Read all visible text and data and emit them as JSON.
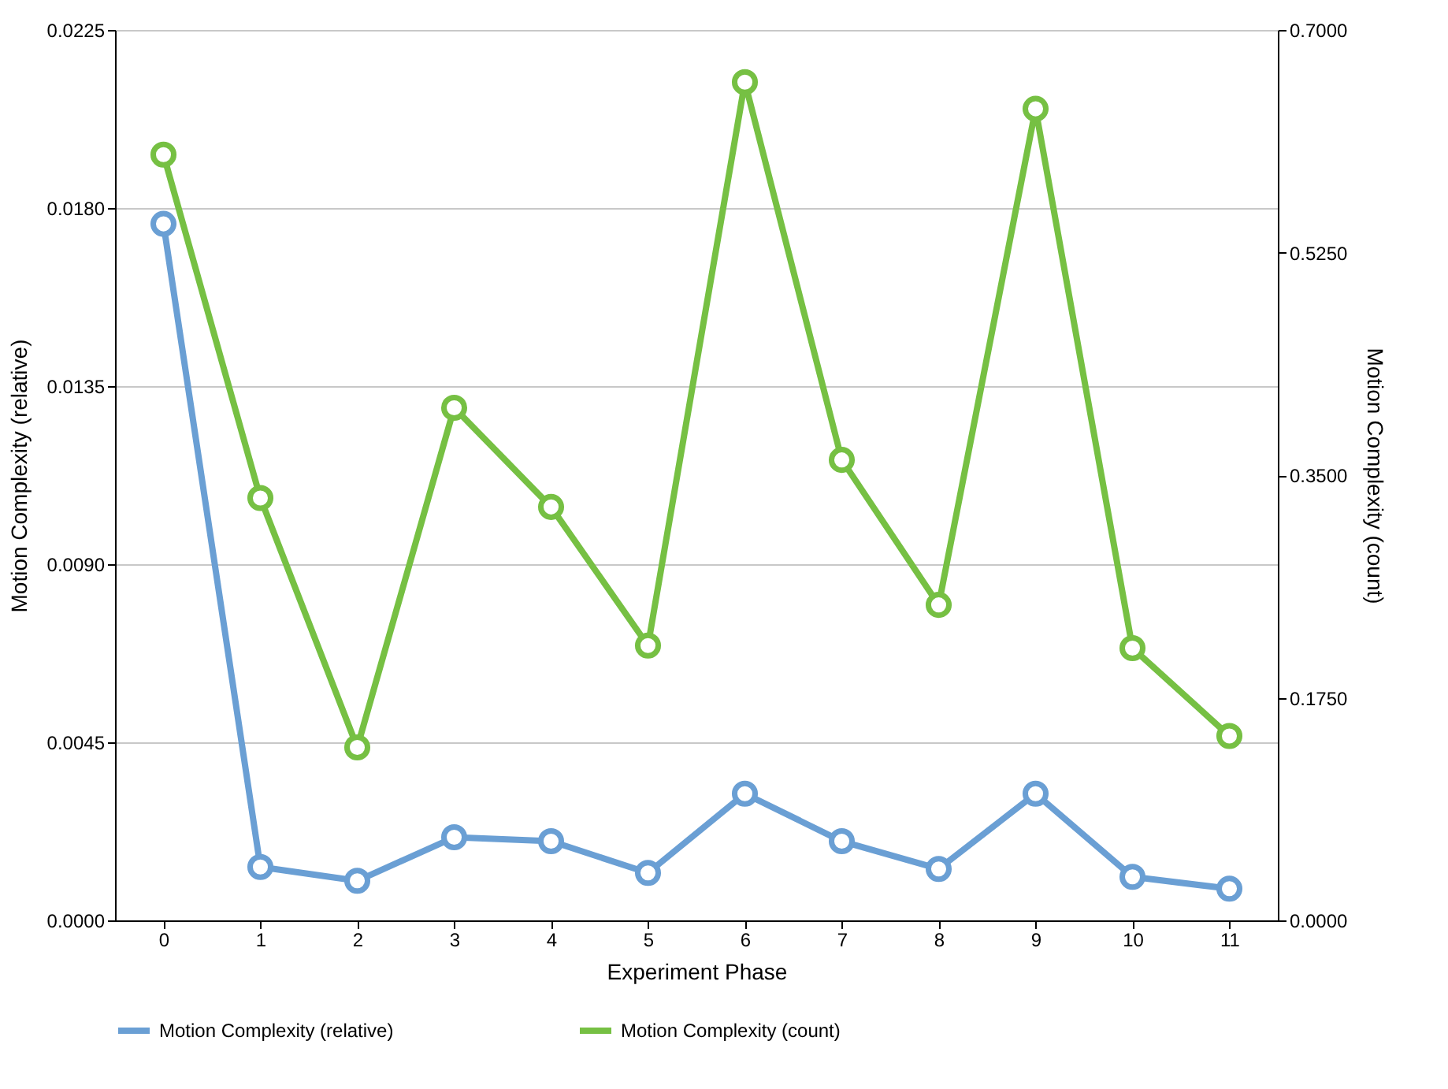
{
  "chart_data": {
    "type": "line",
    "xlabel": "Experiment Phase",
    "ylabel": "Motion Complexity (relative)",
    "y2label": "Motion Complexity (count)",
    "categories": [
      "0",
      "1",
      "2",
      "3",
      "4",
      "5",
      "6",
      "7",
      "8",
      "9",
      "10",
      "11"
    ],
    "ylim": [
      0,
      0.0225
    ],
    "yticks": [
      {
        "value": 0,
        "label": "0.0000"
      },
      {
        "value": 0.0045,
        "label": "0.0045"
      },
      {
        "value": 0.009,
        "label": "0.0090"
      },
      {
        "value": 0.0135,
        "label": "0.0135"
      },
      {
        "value": 0.018,
        "label": "0.0180"
      },
      {
        "value": 0.0225,
        "label": "0.0225"
      }
    ],
    "y2lim": [
      0,
      0.7
    ],
    "y2ticks": [
      {
        "value": 0,
        "label": "0.0000"
      },
      {
        "value": 0.175,
        "label": "0.1750"
      },
      {
        "value": 0.35,
        "label": "0.3500"
      },
      {
        "value": 0.525,
        "label": "0.5250"
      },
      {
        "value": 0.7,
        "label": "0.7000"
      }
    ],
    "grid": "y",
    "legend": "bottom",
    "marker": "circle",
    "line_style": "solid",
    "series": [
      {
        "name": "Motion Complexity (relative)",
        "color": "#6a9fd4",
        "values": [
          0.0176,
          0.00135,
          0.001,
          0.0021,
          0.002,
          0.0012,
          0.0032,
          0.002,
          0.0013,
          0.0032,
          0.0011,
          0.0008
        ]
      },
      {
        "name": "Motion Complexity (count)",
        "color": "#76c043",
        "axis": "y2",
        "values": [
          0.602,
          0.332,
          0.136,
          0.403,
          0.325,
          0.216,
          0.659,
          0.362,
          0.248,
          0.638,
          0.214,
          0.145
        ]
      }
    ]
  }
}
